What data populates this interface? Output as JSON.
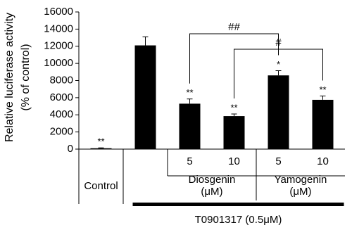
{
  "chart_data": {
    "type": "bar",
    "ylabel": [
      "Relative luciferase activity",
      "(% of control)"
    ],
    "categories": [
      "Control",
      null,
      "5",
      "10",
      "5",
      "10"
    ],
    "values": [
      100,
      12100,
      5300,
      3850,
      8600,
      5750
    ],
    "errors": [
      50,
      1000,
      550,
      250,
      550,
      450
    ],
    "annotations": [
      "**",
      null,
      "**",
      "**",
      "*",
      "**"
    ],
    "groups": [
      {
        "lines": [
          "Diosgenin",
          "(μM)"
        ],
        "span": [
          2,
          3
        ]
      },
      {
        "lines": [
          "Yamogenin",
          "(μM)"
        ],
        "span": [
          4,
          5
        ]
      }
    ],
    "treatment": {
      "label": "T0901317 (0.5μM)",
      "span": [
        1,
        5
      ]
    },
    "brackets": [
      {
        "label": "##",
        "between": [
          2,
          4
        ]
      },
      {
        "label": "#",
        "between": [
          3,
          5
        ]
      }
    ],
    "color": "#000000",
    "ylim": [
      0,
      16000
    ],
    "yticks": [
      0,
      2000,
      4000,
      6000,
      8000,
      10000,
      12000,
      14000,
      16000
    ]
  }
}
